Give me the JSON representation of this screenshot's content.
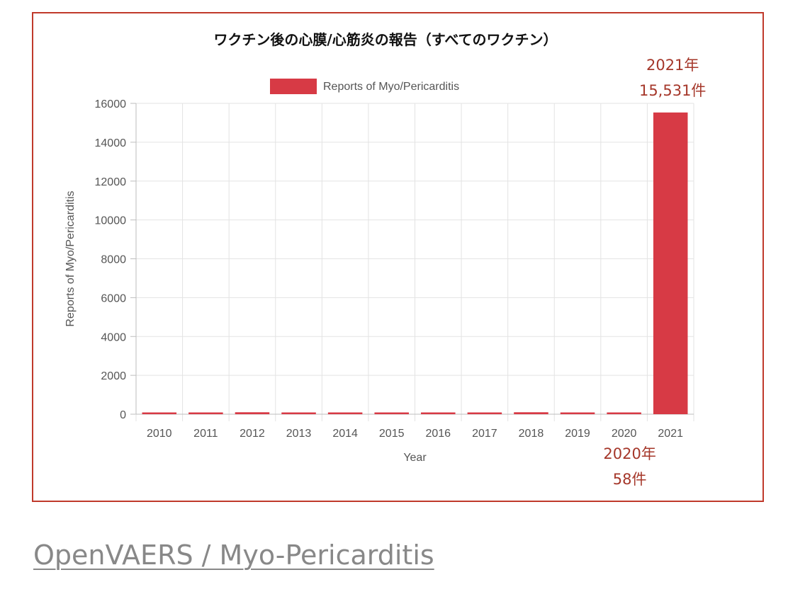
{
  "chart_data": {
    "type": "bar",
    "title": "ワクチン後の心膜/心筋炎の報告（すべてのワクチン）",
    "categories": [
      "2010",
      "2011",
      "2012",
      "2013",
      "2014",
      "2015",
      "2016",
      "2017",
      "2018",
      "2019",
      "2020",
      "2021"
    ],
    "series": [
      {
        "name": "Reports of Myo/Pericarditis",
        "values": [
          65,
          60,
          100,
          70,
          55,
          35,
          40,
          60,
          100,
          65,
          58,
          15531
        ]
      }
    ],
    "xlabel": "Year",
    "ylabel": "Reports of Myo/Pericarditis",
    "ylim": [
      0,
      16000
    ],
    "yticks": [
      "0",
      "2000",
      "4000",
      "6000",
      "8000",
      "10000",
      "12000",
      "14000",
      "16000"
    ],
    "grid": true,
    "legend": "top-center",
    "bar_color": "#d73a45",
    "annotations": [
      {
        "category": "2021",
        "lines": [
          "2021年",
          "15,531件"
        ]
      },
      {
        "category": "2020",
        "lines": [
          "2020年",
          "58件"
        ]
      }
    ]
  },
  "frame_color": "#c0392b",
  "annotation_color": "#a5372a",
  "source_link": {
    "label": "OpenVAERS / Myo-Pericarditis"
  }
}
